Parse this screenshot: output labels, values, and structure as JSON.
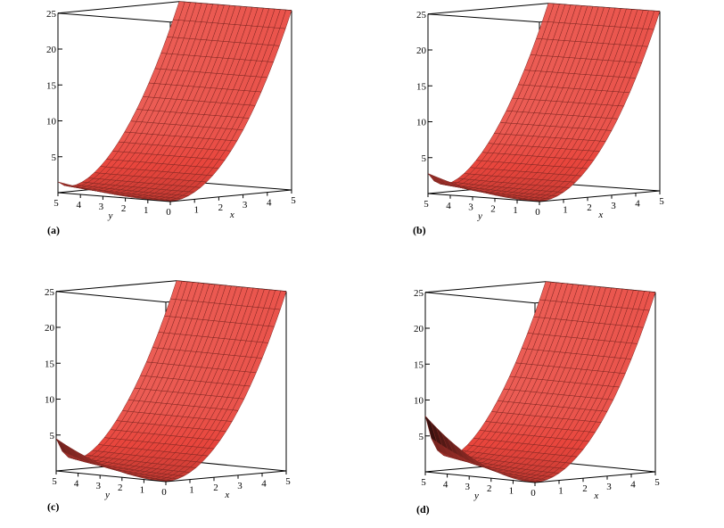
{
  "chart_data": [
    {
      "type": "surface3d",
      "caption": "(a)",
      "xlabel": "x",
      "ylabel": "y",
      "x_range": [
        0,
        5
      ],
      "y_range": [
        0,
        5
      ],
      "z_range": [
        0,
        25
      ],
      "x_ticks": [
        "0",
        "1",
        "2",
        "3",
        "4",
        "5"
      ],
      "y_ticks": [
        "0",
        "1",
        "2",
        "3",
        "4",
        "5"
      ],
      "z_ticks": [
        "5",
        "10",
        "15",
        "20",
        "25"
      ],
      "z_at_x0_y5": 1.5,
      "color": "#e8453c"
    },
    {
      "type": "surface3d",
      "caption": "(b)",
      "xlabel": "x",
      "ylabel": "y",
      "x_range": [
        0,
        5
      ],
      "y_range": [
        0,
        5
      ],
      "z_range": [
        0,
        25
      ],
      "x_ticks": [
        "0",
        "1",
        "2",
        "3",
        "4",
        "5"
      ],
      "y_ticks": [
        "0",
        "1",
        "2",
        "3",
        "4",
        "5"
      ],
      "z_ticks": [
        "5",
        "10",
        "15",
        "20",
        "25"
      ],
      "z_at_x0_y5": 2.8,
      "color": "#e8453c"
    },
    {
      "type": "surface3d",
      "caption": "(c)",
      "xlabel": "x",
      "ylabel": "y",
      "x_range": [
        0,
        5
      ],
      "y_range": [
        0,
        5
      ],
      "z_range": [
        0,
        25
      ],
      "x_ticks": [
        "0",
        "1",
        "2",
        "3",
        "4",
        "5"
      ],
      "y_ticks": [
        "0",
        "1",
        "2",
        "3",
        "4",
        "5"
      ],
      "z_ticks": [
        "5",
        "10",
        "15",
        "20",
        "25"
      ],
      "z_at_x0_y5": 4.5,
      "color": "#e8453c"
    },
    {
      "type": "surface3d",
      "caption": "(d)",
      "xlabel": "x",
      "ylabel": "y",
      "x_range": [
        0,
        5
      ],
      "y_range": [
        0,
        5
      ],
      "z_range": [
        0,
        25
      ],
      "x_ticks": [
        "0",
        "1",
        "2",
        "3",
        "4",
        "5"
      ],
      "y_ticks": [
        "0",
        "1",
        "2",
        "3",
        "4",
        "5"
      ],
      "z_ticks": [
        "5",
        "10",
        "15",
        "20",
        "25"
      ],
      "z_at_x0_y5": 7.8,
      "color": "#e8453c"
    }
  ]
}
